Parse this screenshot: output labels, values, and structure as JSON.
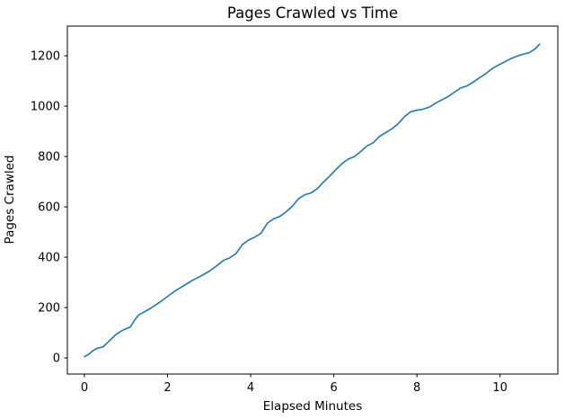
{
  "figure": {
    "background": "#ffffff",
    "spine_color": "#000000",
    "text_color": "#000000"
  },
  "chart_data": {
    "type": "line",
    "title": "Pages Crawled vs Time",
    "xlabel": "Elapsed Minutes",
    "ylabel": "Pages Crawled",
    "series_color": "#1f77b4",
    "line_width": 1.6,
    "grid": false,
    "legend": null,
    "xlim": [
      -0.41,
      11.39
    ],
    "ylim": [
      -64,
      1318
    ],
    "xticks": [
      0,
      2,
      4,
      6,
      8,
      10
    ],
    "yticks": [
      0,
      200,
      400,
      600,
      800,
      1000,
      1200
    ],
    "x": [
      0.0,
      0.1,
      0.2,
      0.3,
      0.45,
      0.6,
      0.75,
      0.9,
      1.0,
      1.1,
      1.2,
      1.3,
      1.45,
      1.6,
      1.8,
      2.0,
      2.2,
      2.4,
      2.6,
      2.8,
      3.0,
      3.2,
      3.35,
      3.5,
      3.65,
      3.8,
      3.95,
      4.1,
      4.25,
      4.4,
      4.55,
      4.7,
      4.85,
      5.0,
      5.15,
      5.3,
      5.45,
      5.6,
      5.75,
      5.9,
      6.05,
      6.2,
      6.35,
      6.5,
      6.65,
      6.8,
      6.95,
      7.1,
      7.25,
      7.4,
      7.55,
      7.7,
      7.85,
      8.0,
      8.15,
      8.3,
      8.45,
      8.6,
      8.75,
      8.9,
      9.05,
      9.2,
      9.35,
      9.5,
      9.65,
      9.8,
      9.95,
      10.1,
      10.25,
      10.4,
      10.55,
      10.7,
      10.85,
      10.95
    ],
    "y": [
      5,
      14,
      28,
      38,
      44,
      68,
      92,
      108,
      116,
      122,
      148,
      170,
      184,
      198,
      220,
      244,
      268,
      288,
      308,
      325,
      344,
      368,
      388,
      398,
      415,
      450,
      468,
      480,
      495,
      535,
      552,
      562,
      580,
      602,
      632,
      648,
      655,
      672,
      698,
      722,
      748,
      772,
      790,
      800,
      820,
      842,
      855,
      880,
      895,
      910,
      930,
      958,
      978,
      984,
      988,
      996,
      1012,
      1025,
      1038,
      1055,
      1072,
      1080,
      1095,
      1112,
      1128,
      1148,
      1162,
      1175,
      1188,
      1198,
      1206,
      1212,
      1228,
      1246
    ]
  }
}
